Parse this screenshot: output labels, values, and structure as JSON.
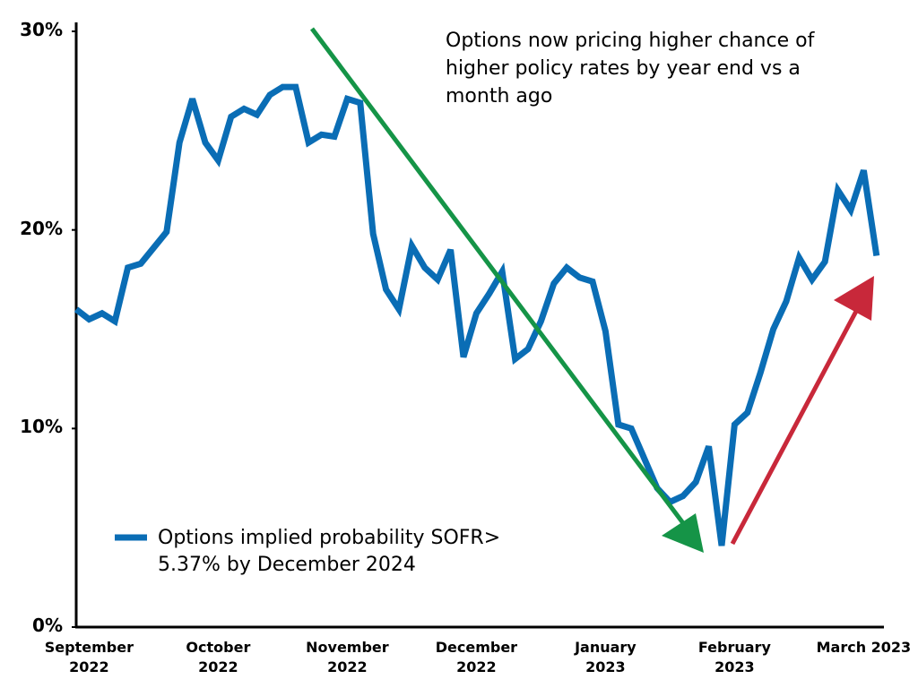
{
  "chart_data": {
    "type": "line",
    "annotation": "Options now pricing higher chance of higher policy rates by year end vs a month ago",
    "categories": [
      null,
      "September 2022",
      null,
      null,
      null,
      null,
      null,
      null,
      null,
      null,
      null,
      "October 2022",
      null,
      null,
      null,
      null,
      null,
      null,
      null,
      null,
      null,
      "November 2022",
      null,
      null,
      null,
      null,
      null,
      null,
      null,
      null,
      null,
      "December 2022",
      null,
      null,
      null,
      null,
      null,
      null,
      null,
      null,
      null,
      "January 2023",
      null,
      null,
      null,
      null,
      null,
      null,
      null,
      null,
      null,
      "February 2023",
      null,
      null,
      null,
      null,
      null,
      null,
      null,
      null,
      null,
      "March 2023",
      null
    ],
    "series": [
      {
        "name": "Options implied probability SOFR> 5.37% by December 2024",
        "color": "#0a6db5",
        "values": [
          16,
          15.5,
          15.8,
          15.4,
          18.1,
          18.3,
          19.1,
          19.9,
          24.4,
          26.6,
          24.4,
          23.5,
          25.7,
          26.1,
          25.8,
          26.8,
          27.2,
          27.2,
          24.4,
          24.8,
          24.7,
          26.6,
          26.4,
          19.8,
          17,
          16,
          19.2,
          18.1,
          17.5,
          19,
          13.6,
          15.8,
          16.8,
          17.9,
          13.5,
          14,
          15.4,
          17.3,
          18.1,
          17.6,
          17.4,
          14.9,
          10.2,
          10,
          8.5,
          7,
          6.3,
          6.6,
          7.3,
          9.1,
          4.1,
          10.2,
          10.8,
          12.8,
          15,
          16.4,
          18.6,
          17.5,
          18.4,
          22,
          21,
          23,
          18.7
        ]
      }
    ],
    "ylim": [
      0,
      30
    ],
    "yticks": [
      {
        "value": 0,
        "label": "0%"
      },
      {
        "value": 10,
        "label": "10%"
      },
      {
        "value": 20,
        "label": "20%"
      },
      {
        "value": 30,
        "label": "30%"
      }
    ],
    "grid": false
  }
}
